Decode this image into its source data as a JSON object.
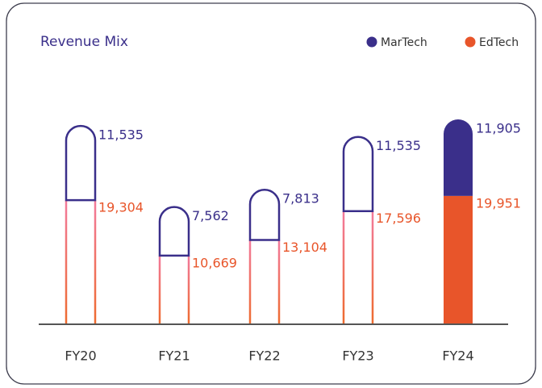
{
  "chart_data": {
    "type": "stacked-bar",
    "title": "Revenue Mix",
    "categories": [
      "FY20",
      "FY21",
      "FY22",
      "FY23",
      "FY24"
    ],
    "series": [
      {
        "name": "EdTech",
        "color": "#e8552a",
        "values": [
          19304,
          10669,
          13104,
          17596,
          19951
        ],
        "value_labels": [
          "19,304",
          "10,669",
          "13,104",
          "17,596",
          "19,951"
        ]
      },
      {
        "name": "MarTech",
        "color": "#3a2f8a",
        "values": [
          11535,
          7562,
          7813,
          11535,
          11905
        ],
        "value_labels": [
          "11,535",
          "7,562",
          "7,813",
          "11,535",
          "11,905"
        ]
      }
    ],
    "legend": [
      "MarTech",
      "EdTech"
    ],
    "highlight": "FY24"
  }
}
